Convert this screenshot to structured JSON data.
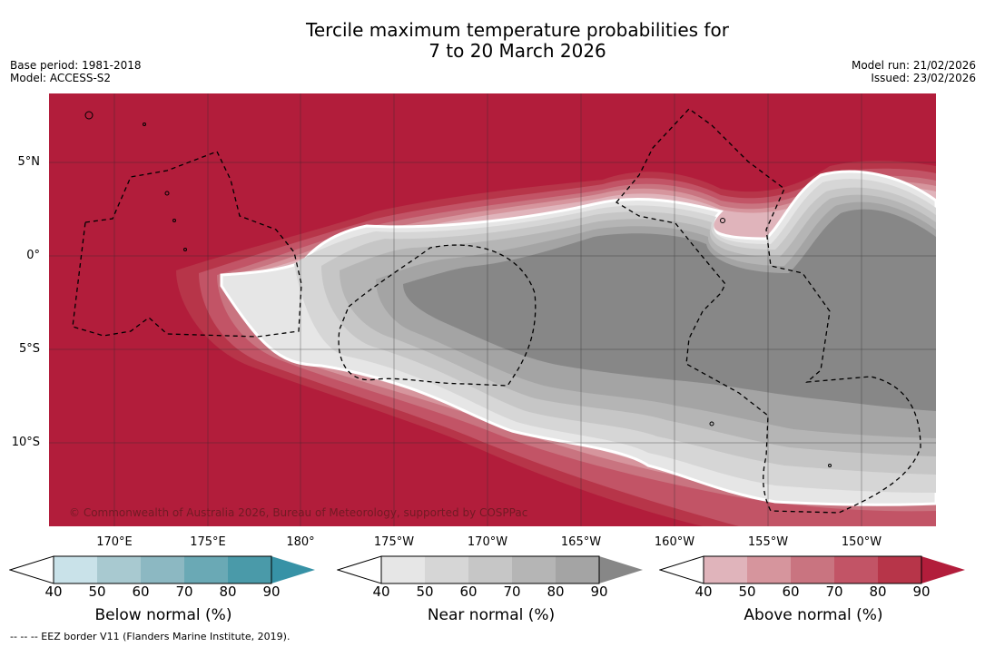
{
  "title_line1": "Tercile maximum temperature probabilities for",
  "title_line2": "7 to 20 March 2026",
  "meta_left": {
    "base_period": "Base period: 1981-2018",
    "model": "Model: ACCESS-S2"
  },
  "meta_right": {
    "model_run": "Model run: 21/02/2026",
    "issued": "Issued: 23/02/2026"
  },
  "lat_labels": [
    "5°N",
    "0°",
    "5°S",
    "10°S"
  ],
  "lon_labels": [
    "170°E",
    "175°E",
    "180°",
    "175°W",
    "170°W",
    "165°W",
    "160°W",
    "155°W",
    "150°W"
  ],
  "copyright": "© Commonwealth of Australia 2026, Bureau of Meteorology, supported by COSPPac",
  "colorbars": [
    {
      "label": "Below normal (%)",
      "ticks": [
        "40",
        "50",
        "60",
        "70",
        "80",
        "90"
      ],
      "colors": [
        "#c9e2e9",
        "#a8c9d0",
        "#8cb8c2",
        "#6aa9b5",
        "#4a9aa9",
        "#3792a6"
      ]
    },
    {
      "label": "Near normal (%)",
      "ticks": [
        "40",
        "50",
        "60",
        "70",
        "80",
        "90"
      ],
      "colors": [
        "#e6e6e6",
        "#d6d6d6",
        "#c6c6c6",
        "#b5b5b5",
        "#a4a4a4",
        "#878787"
      ]
    },
    {
      "label": "Above normal (%)",
      "ticks": [
        "40",
        "50",
        "60",
        "70",
        "80",
        "90"
      ],
      "colors": [
        "#e0b4bb",
        "#d6959d",
        "#c97480",
        "#c25466",
        "#b73549",
        "#b21d3b"
      ]
    }
  ],
  "footer": "--  --  -- EEZ border V11 (Flanders Marine Institute, 2019)."
}
